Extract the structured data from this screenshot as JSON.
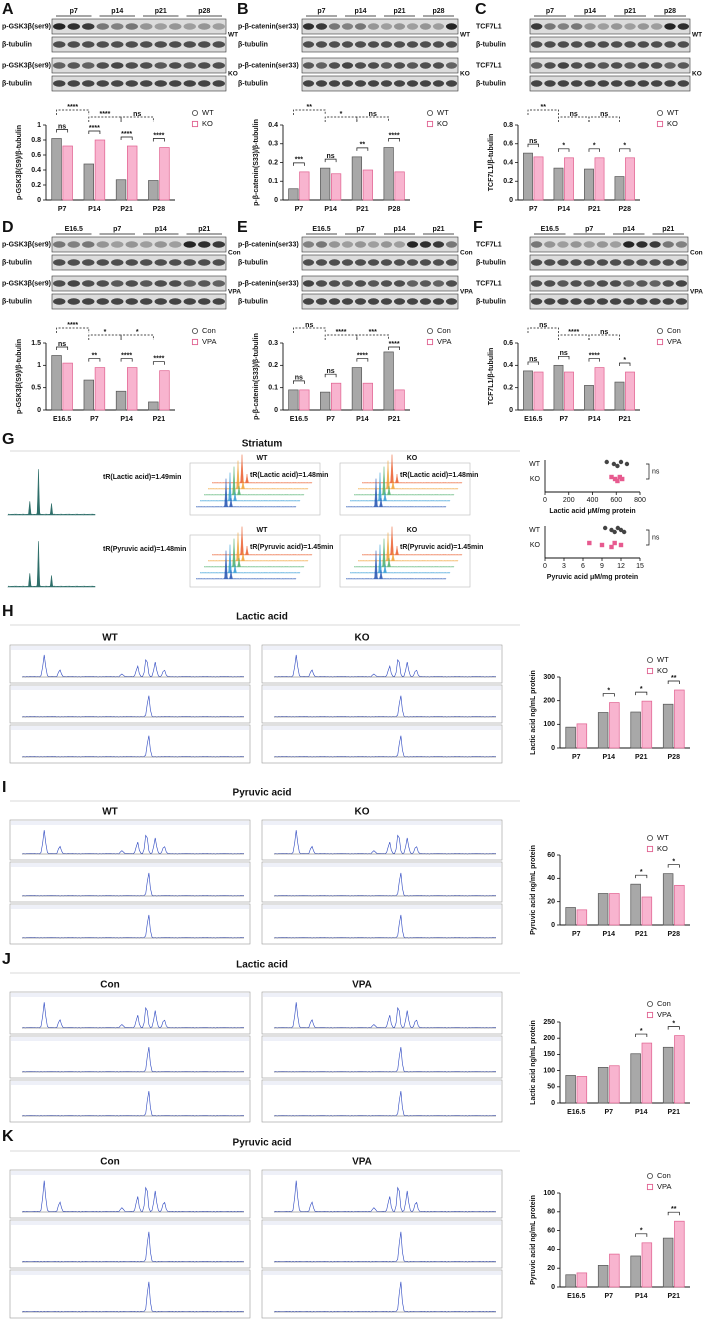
{
  "panel_labels": [
    "A",
    "B",
    "C",
    "D",
    "E",
    "F",
    "G",
    "H",
    "I",
    "J",
    "K"
  ],
  "blots": [
    {
      "lanes": [
        "p7",
        "p14",
        "p21",
        "p28"
      ],
      "rows": [
        "p-GSK3β(ser9)",
        "β-tubulin",
        "p-GSK3β(ser9)",
        "β-tubulin"
      ],
      "groups": [
        "WT",
        "KO"
      ]
    },
    {
      "lanes": [
        "p7",
        "p14",
        "p21",
        "p28"
      ],
      "rows": [
        "p-β-catenin(ser33)",
        "β-tubulin",
        "p-β-catenin(ser33)",
        "β-tubulin"
      ],
      "groups": [
        "WT",
        "KO"
      ]
    },
    {
      "lanes": [
        "p7",
        "p14",
        "p21",
        "p28"
      ],
      "rows": [
        "TCF7L1",
        "β-tubulin",
        "TCF7L1",
        "β-tubulin"
      ],
      "groups": [
        "WT",
        "KO"
      ]
    },
    {
      "lanes": [
        "E16.5",
        "p7",
        "p14",
        "p21"
      ],
      "rows": [
        "p-GSK3β(ser9)",
        "β-tubulin",
        "p-GSK3β(ser9)",
        "β-tubulin"
      ],
      "groups": [
        "Con",
        "VPA"
      ]
    },
    {
      "lanes": [
        "E16.5",
        "p7",
        "p14",
        "p21"
      ],
      "rows": [
        "p-β-catenin(ser33)",
        "β-tubulin",
        "p-β-catenin(ser33)",
        "β-tubulin"
      ],
      "groups": [
        "Con",
        "VPA"
      ]
    },
    {
      "lanes": [
        "E16.5",
        "p7",
        "p14",
        "p21"
      ],
      "rows": [
        "TCF7L1",
        "β-tubulin",
        "TCF7L1",
        "β-tubulin"
      ],
      "groups": [
        "Con",
        "VPA"
      ]
    }
  ],
  "striatum": {
    "title": "Striatum",
    "groups": [
      "WT",
      "KO"
    ],
    "lactic": [
      "tR(Lactic acid)=1.49min",
      "tR(Lactic acid)=1.48min",
      "tR(Lactic acid)=1.48min"
    ],
    "pyruvic": [
      "tR(Pyruvic acid)=1.48min",
      "tR(Pyruvic acid)=1.45min",
      "tR(Pyruvic acid)=1.45min"
    ]
  },
  "chromatograms": [
    {
      "title": "Lactic acid",
      "groups": [
        "WT",
        "KO"
      ]
    },
    {
      "title": "Pyruvic acid",
      "groups": [
        "WT",
        "KO"
      ]
    },
    {
      "title": "Lactic acid",
      "groups": [
        "Con",
        "VPA"
      ]
    },
    {
      "title": "Pyruvic acid",
      "groups": [
        "Con",
        "VPA"
      ]
    }
  ],
  "chart_data": [
    {
      "type": "bar",
      "y_label": "p-GSK3β(S9)/β-tubulin",
      "categories": [
        "P7",
        "P14",
        "P21",
        "P28"
      ],
      "series": [
        {
          "name": "WT",
          "color": "#a8a8a8",
          "edge": "#555555",
          "values": [
            0.82,
            0.48,
            0.27,
            0.26
          ]
        },
        {
          "name": "KO",
          "color": "#f8b4cf",
          "edge": "#e0608f",
          "values": [
            0.72,
            0.8,
            0.72,
            0.7
          ]
        }
      ],
      "ylim": [
        0,
        1.0
      ],
      "yticks": [
        0.0,
        0.2,
        0.4,
        0.6,
        0.8,
        1.0
      ],
      "annotations": [
        "****",
        "****",
        "ns",
        "ns",
        "****",
        "****",
        "****"
      ]
    },
    {
      "type": "bar",
      "y_label": "p-β-catenin(S33)/β-tubulin",
      "categories": [
        "P7",
        "P14",
        "P21",
        "P28"
      ],
      "series": [
        {
          "name": "WT",
          "color": "#a8a8a8",
          "edge": "#555555",
          "values": [
            0.06,
            0.17,
            0.23,
            0.28
          ]
        },
        {
          "name": "KO",
          "color": "#f8b4cf",
          "edge": "#e0608f",
          "values": [
            0.15,
            0.14,
            0.16,
            0.15
          ]
        }
      ],
      "ylim": [
        0,
        0.4
      ],
      "yticks": [
        0.0,
        0.1,
        0.2,
        0.3,
        0.4
      ],
      "annotations": [
        "**",
        "*",
        "ns",
        "***",
        "ns",
        "**",
        "****"
      ]
    },
    {
      "type": "bar",
      "y_label": "TCF7L1/β-tubulin",
      "categories": [
        "P7",
        "P14",
        "P21",
        "P28"
      ],
      "series": [
        {
          "name": "WT",
          "color": "#a8a8a8",
          "edge": "#555555",
          "values": [
            0.5,
            0.34,
            0.33,
            0.25
          ]
        },
        {
          "name": "KO",
          "color": "#f8b4cf",
          "edge": "#e0608f",
          "values": [
            0.46,
            0.45,
            0.45,
            0.45
          ]
        }
      ],
      "ylim": [
        0,
        0.8
      ],
      "yticks": [
        0.0,
        0.2,
        0.4,
        0.6,
        0.8
      ],
      "annotations": [
        "**",
        "ns",
        "ns",
        "ns",
        "*",
        "*",
        "*"
      ]
    },
    {
      "type": "bar",
      "y_label": "p-GSK3β(S9)/β-tubulin",
      "categories": [
        "E16.5",
        "P7",
        "P14",
        "P21"
      ],
      "series": [
        {
          "name": "Con",
          "color": "#a8a8a8",
          "edge": "#555555",
          "values": [
            1.22,
            0.67,
            0.42,
            0.18
          ]
        },
        {
          "name": "VPA",
          "color": "#f8b4cf",
          "edge": "#e0608f",
          "values": [
            1.05,
            0.95,
            0.95,
            0.88
          ]
        }
      ],
      "ylim": [
        0,
        1.5
      ],
      "yticks": [
        0.0,
        0.5,
        1.0,
        1.5
      ],
      "annotations": [
        "****",
        "*",
        "*",
        "ns",
        "**",
        "****",
        "****"
      ]
    },
    {
      "type": "bar",
      "y_label": "p-β-catenin(S33)/β-tubulin",
      "categories": [
        "E16.5",
        "P7",
        "P14",
        "P21"
      ],
      "series": [
        {
          "name": "Con",
          "color": "#a8a8a8",
          "edge": "#555555",
          "values": [
            0.09,
            0.08,
            0.19,
            0.26
          ]
        },
        {
          "name": "VPA",
          "color": "#f8b4cf",
          "edge": "#e0608f",
          "values": [
            0.09,
            0.12,
            0.12,
            0.09
          ]
        }
      ],
      "ylim": [
        0,
        0.3
      ],
      "yticks": [
        0.0,
        0.1,
        0.2,
        0.3
      ],
      "annotations": [
        "ns",
        "****",
        "***",
        "ns",
        "ns",
        "****",
        "****"
      ]
    },
    {
      "type": "bar",
      "y_label": "TCF7L1/β-tubulin",
      "categories": [
        "E16.5",
        "P7",
        "P14",
        "P21"
      ],
      "series": [
        {
          "name": "Con",
          "color": "#a8a8a8",
          "edge": "#555555",
          "values": [
            0.35,
            0.4,
            0.22,
            0.25
          ]
        },
        {
          "name": "VPA",
          "color": "#f8b4cf",
          "edge": "#e0608f",
          "values": [
            0.34,
            0.34,
            0.38,
            0.34
          ]
        }
      ],
      "ylim": [
        0,
        0.6
      ],
      "yticks": [
        0.0,
        0.2,
        0.4,
        0.6
      ],
      "annotations": [
        "ns",
        "****",
        "ns",
        "ns",
        "ns",
        "****",
        "*"
      ]
    },
    {
      "type": "strip",
      "x_label": "Lactic acid μM/mg protein",
      "categories": [
        "WT",
        "KO"
      ],
      "colors": [
        "#444444",
        "#e75a8f"
      ],
      "values": [
        [
          520,
          580,
          610,
          640,
          690
        ],
        [
          560,
          590,
          610,
          630,
          650
        ]
      ],
      "xlim": [
        0,
        800
      ],
      "xticks": [
        0,
        200,
        400,
        600,
        800
      ],
      "annotation": "ns"
    },
    {
      "type": "strip",
      "x_label": "Pyruvic acid μM/mg protein",
      "categories": [
        "WT",
        "KO"
      ],
      "colors": [
        "#444444",
        "#e75a8f"
      ],
      "values": [
        [
          9.5,
          10.5,
          11,
          11.5,
          12,
          12.5
        ],
        [
          7,
          9,
          10.5,
          11,
          12
        ]
      ],
      "xlim": [
        0,
        15
      ],
      "xticks": [
        0,
        3,
        6,
        9,
        12,
        15
      ],
      "annotation": "ns"
    },
    {
      "type": "bar",
      "y_label": "Lactic acid ng/mL protein",
      "categories": [
        "P7",
        "P14",
        "P21",
        "P28"
      ],
      "series": [
        {
          "name": "WT",
          "color": "#a8a8a8",
          "edge": "#555555",
          "values": [
            88,
            150,
            152,
            185
          ]
        },
        {
          "name": "KO",
          "color": "#f8b4cf",
          "edge": "#e0608f",
          "values": [
            102,
            192,
            198,
            245
          ]
        }
      ],
      "ylim": [
        0,
        300
      ],
      "yticks": [
        0,
        100,
        200,
        300
      ],
      "annotations": [
        "*",
        "*",
        "**"
      ]
    },
    {
      "type": "bar",
      "y_label": "Pyruvic acid ng/mL protein",
      "categories": [
        "P7",
        "P14",
        "P21",
        "P28"
      ],
      "series": [
        {
          "name": "WT",
          "color": "#a8a8a8",
          "edge": "#555555",
          "values": [
            15,
            27,
            35,
            44
          ]
        },
        {
          "name": "KO",
          "color": "#f8b4cf",
          "edge": "#e0608f",
          "values": [
            13,
            27,
            24,
            34
          ]
        }
      ],
      "ylim": [
        0,
        60
      ],
      "yticks": [
        0,
        20,
        40,
        60
      ],
      "annotations": [
        "*",
        "*"
      ]
    },
    {
      "type": "bar",
      "y_label": "Lactic acid ng/mL protein",
      "categories": [
        "E16.5",
        "P7",
        "P14",
        "P21"
      ],
      "series": [
        {
          "name": "Con",
          "color": "#a8a8a8",
          "edge": "#555555",
          "values": [
            85,
            110,
            152,
            172
          ]
        },
        {
          "name": "VPA",
          "color": "#f8b4cf",
          "edge": "#e0608f",
          "values": [
            82,
            115,
            185,
            208
          ]
        }
      ],
      "ylim": [
        0,
        250
      ],
      "yticks": [
        0,
        50,
        100,
        150,
        200,
        250
      ],
      "annotations": [
        "*",
        "*"
      ]
    },
    {
      "type": "bar",
      "y_label": "Pyruvic acid ng/mL protein",
      "categories": [
        "E16.5",
        "P7",
        "P14",
        "P21"
      ],
      "series": [
        {
          "name": "Con",
          "color": "#a8a8a8",
          "edge": "#555555",
          "values": [
            13,
            23,
            33,
            52
          ]
        },
        {
          "name": "VPA",
          "color": "#f8b4cf",
          "edge": "#e0608f",
          "values": [
            15,
            35,
            47,
            70
          ]
        }
      ],
      "ylim": [
        0,
        100
      ],
      "yticks": [
        0,
        20,
        40,
        60,
        80,
        100
      ],
      "annotations": [
        "*",
        "**"
      ]
    }
  ]
}
